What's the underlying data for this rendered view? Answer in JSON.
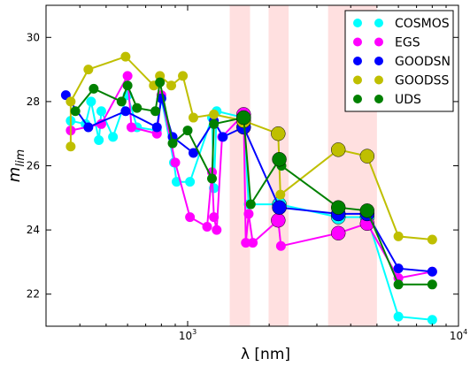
{
  "chart_data": {
    "type": "scatter",
    "xlabel": "λ [nm]",
    "ylabel": "m_lim",
    "xscale": "log",
    "xlim": [
      300,
      10000
    ],
    "ylim": [
      21,
      31
    ],
    "yticks": [
      22,
      24,
      26,
      28,
      30
    ],
    "xticks": [
      {
        "value": 1000,
        "base": "10",
        "exp": "3"
      },
      {
        "value": 10000,
        "base": "10",
        "exp": "4"
      }
    ],
    "grid": false,
    "legend_position": "top-right",
    "shaded_bands": [
      [
        1430,
        1700
      ],
      [
        1990,
        2360
      ],
      [
        3300,
        5000
      ]
    ],
    "series": [
      {
        "name": "COSMOS",
        "color": "#00ffff",
        "points": [
          [
            370,
            27.4
          ],
          [
            420,
            27.3
          ],
          [
            440,
            28.0
          ],
          [
            470,
            26.8
          ],
          [
            480,
            27.7
          ],
          [
            530,
            26.9
          ],
          [
            600,
            28.2
          ],
          [
            650,
            27.2
          ],
          [
            770,
            27.1
          ],
          [
            800,
            28.1
          ],
          [
            890,
            26.1
          ],
          [
            910,
            25.5
          ],
          [
            1020,
            25.5
          ],
          [
            1230,
            27.5
          ],
          [
            1250,
            25.3
          ],
          [
            1280,
            27.7
          ],
          [
            1610,
            27.5
          ],
          [
            1680,
            24.8
          ],
          [
            2180,
            24.8
          ],
          [
            3600,
            24.4
          ],
          [
            4600,
            24.4
          ],
          [
            6000,
            21.3
          ],
          [
            8000,
            21.2
          ]
        ],
        "large_points": [
          [
            1610,
            27.5
          ],
          [
            2180,
            24.8
          ],
          [
            3600,
            24.4
          ],
          [
            4600,
            24.4
          ]
        ]
      },
      {
        "name": "EGS",
        "color": "#ff00ff",
        "points": [
          [
            370,
            27.1
          ],
          [
            480,
            27.3
          ],
          [
            600,
            28.8
          ],
          [
            620,
            27.2
          ],
          [
            770,
            27.0
          ],
          [
            800,
            28.2
          ],
          [
            900,
            26.1
          ],
          [
            1020,
            24.4
          ],
          [
            1180,
            24.1
          ],
          [
            1230,
            25.8
          ],
          [
            1250,
            24.4
          ],
          [
            1280,
            24.0
          ],
          [
            1340,
            26.9
          ],
          [
            1610,
            27.6
          ],
          [
            1640,
            23.6
          ],
          [
            1680,
            24.5
          ],
          [
            1740,
            23.6
          ],
          [
            2160,
            24.3
          ],
          [
            2210,
            23.5
          ],
          [
            3600,
            23.9
          ],
          [
            4600,
            24.2
          ],
          [
            6000,
            22.5
          ],
          [
            8000,
            22.7
          ]
        ],
        "large_points": [
          [
            1610,
            27.6
          ],
          [
            2160,
            24.3
          ],
          [
            3600,
            23.9
          ],
          [
            4600,
            24.2
          ]
        ]
      },
      {
        "name": "GOODSN",
        "color": "#0000ff",
        "points": [
          [
            355,
            28.2
          ],
          [
            430,
            27.2
          ],
          [
            590,
            27.7
          ],
          [
            770,
            27.2
          ],
          [
            800,
            28.1
          ],
          [
            880,
            26.9
          ],
          [
            1050,
            26.4
          ],
          [
            1250,
            27.4
          ],
          [
            1350,
            26.9
          ],
          [
            1610,
            27.2
          ],
          [
            2180,
            24.7
          ],
          [
            3600,
            24.5
          ],
          [
            4600,
            24.5
          ],
          [
            6000,
            22.8
          ],
          [
            8000,
            22.7
          ]
        ],
        "large_points": [
          [
            1610,
            27.2
          ],
          [
            2180,
            24.7
          ],
          [
            3600,
            24.5
          ],
          [
            4600,
            24.5
          ]
        ]
      },
      {
        "name": "GOODSS",
        "color": "#bfbf00",
        "points": [
          [
            370,
            26.6
          ],
          [
            370,
            28.0
          ],
          [
            430,
            29.0
          ],
          [
            590,
            29.4
          ],
          [
            750,
            28.5
          ],
          [
            790,
            28.8
          ],
          [
            870,
            28.5
          ],
          [
            960,
            28.8
          ],
          [
            1050,
            27.5
          ],
          [
            1250,
            27.6
          ],
          [
            1610,
            27.4
          ],
          [
            2160,
            27.0
          ],
          [
            2200,
            25.1
          ],
          [
            3600,
            26.5
          ],
          [
            4600,
            26.3
          ],
          [
            6000,
            23.8
          ],
          [
            8000,
            23.7
          ]
        ],
        "large_points": [
          [
            1610,
            27.4
          ],
          [
            2160,
            27.0
          ],
          [
            3600,
            26.5
          ],
          [
            4600,
            26.3
          ]
        ]
      },
      {
        "name": "UDS",
        "color": "#008000",
        "points": [
          [
            385,
            27.7
          ],
          [
            450,
            28.4
          ],
          [
            570,
            28.0
          ],
          [
            600,
            28.5
          ],
          [
            650,
            27.8
          ],
          [
            760,
            27.7
          ],
          [
            790,
            28.6
          ],
          [
            880,
            26.7
          ],
          [
            1000,
            27.1
          ],
          [
            1230,
            25.6
          ],
          [
            1250,
            27.3
          ],
          [
            1610,
            27.5
          ],
          [
            1710,
            24.8
          ],
          [
            2180,
            26.2
          ],
          [
            2220,
            26.0
          ],
          [
            3600,
            24.7
          ],
          [
            4600,
            24.6
          ],
          [
            6000,
            22.3
          ],
          [
            8000,
            22.3
          ]
        ],
        "large_points": [
          [
            1610,
            27.5
          ],
          [
            2180,
            26.2
          ],
          [
            3600,
            24.7
          ],
          [
            4600,
            24.6
          ]
        ]
      }
    ]
  }
}
